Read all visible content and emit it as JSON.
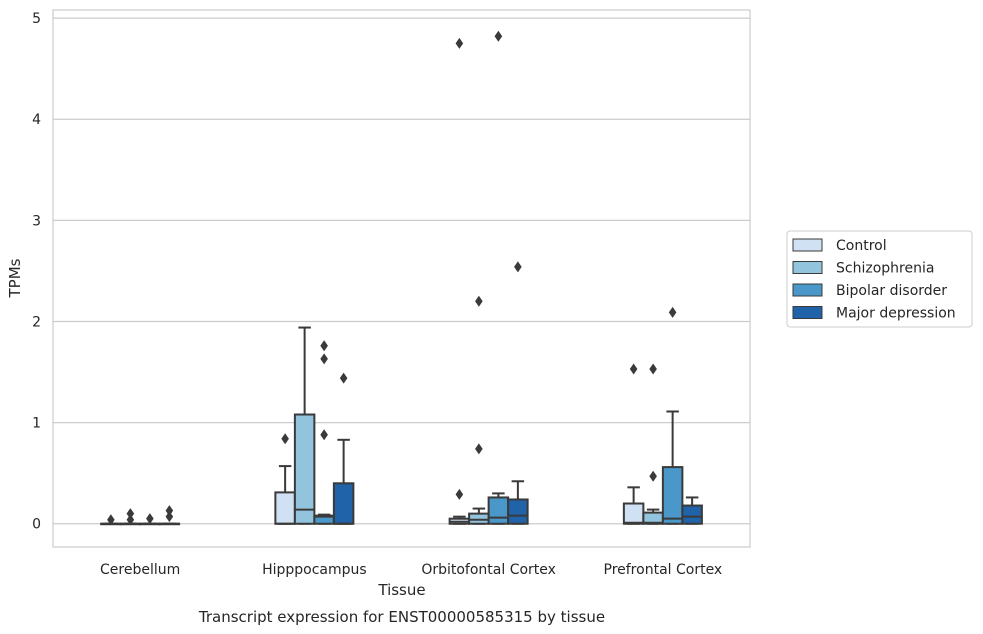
{
  "chart_data": {
    "type": "box",
    "xlabel": "Tissue",
    "ylabel": "TPMs",
    "caption": "Transcript expression for ENST00000585315 by tissue",
    "ylim": [
      -0.23,
      5.08
    ],
    "yticks": [
      0,
      1,
      2,
      3,
      4,
      5
    ],
    "grid": true,
    "legend_position": "center-right",
    "categories": [
      "Cerebellum",
      "Hipppocampus",
      "Orbitofontal Cortex",
      "Prefrontal Cortex"
    ],
    "series": [
      {
        "name": "Control",
        "color": "#cfe1f2",
        "boxes": [
          {
            "whislo": 0,
            "q1": 0,
            "med": 0,
            "q3": 0,
            "whishi": 0,
            "fliers": [
              0.04
            ]
          },
          {
            "whislo": 0,
            "q1": 0,
            "med": 0,
            "q3": 0.31,
            "whishi": 0.57,
            "fliers": [
              0.84
            ]
          },
          {
            "whislo": 0,
            "q1": 0,
            "med": 0.02,
            "q3": 0.05,
            "whishi": 0.07,
            "fliers": [
              0.29,
              4.75
            ]
          },
          {
            "whislo": 0,
            "q1": 0,
            "med": 0.01,
            "q3": 0.2,
            "whishi": 0.36,
            "fliers": [
              1.53
            ]
          }
        ]
      },
      {
        "name": "Schizophrenia",
        "color": "#93c4de",
        "boxes": [
          {
            "whislo": 0,
            "q1": 0,
            "med": 0,
            "q3": 0,
            "whishi": 0,
            "fliers": [
              0.04,
              0.1
            ]
          },
          {
            "whislo": 0,
            "q1": 0,
            "med": 0.14,
            "q3": 1.08,
            "whishi": 1.94,
            "fliers": []
          },
          {
            "whislo": 0,
            "q1": 0,
            "med": 0.04,
            "q3": 0.1,
            "whishi": 0.15,
            "fliers": [
              0.74,
              2.2
            ]
          },
          {
            "whislo": 0,
            "q1": 0,
            "med": 0.01,
            "q3": 0.11,
            "whishi": 0.14,
            "fliers": [
              0.47,
              1.53
            ]
          }
        ]
      },
      {
        "name": "Bipolar disorder",
        "color": "#4a98c9",
        "boxes": [
          {
            "whislo": 0,
            "q1": 0,
            "med": 0,
            "q3": 0,
            "whishi": 0,
            "fliers": [
              0.05
            ]
          },
          {
            "whislo": 0,
            "q1": 0,
            "med": 0.07,
            "q3": 0.08,
            "whishi": 0.09,
            "fliers": [
              0.88,
              1.63,
              1.76
            ]
          },
          {
            "whislo": 0,
            "q1": 0,
            "med": 0.06,
            "q3": 0.26,
            "whishi": 0.3,
            "fliers": [
              4.82
            ]
          },
          {
            "whislo": 0,
            "q1": 0,
            "med": 0.05,
            "q3": 0.56,
            "whishi": 1.11,
            "fliers": [
              2.09
            ]
          }
        ]
      },
      {
        "name": "Major depression",
        "color": "#2063a9",
        "boxes": [
          {
            "whislo": 0,
            "q1": 0,
            "med": 0,
            "q3": 0,
            "whishi": 0,
            "fliers": [
              0.07,
              0.13
            ]
          },
          {
            "whislo": 0,
            "q1": 0,
            "med": 0,
            "q3": 0.4,
            "whishi": 0.83,
            "fliers": [
              1.44
            ]
          },
          {
            "whislo": 0,
            "q1": 0,
            "med": 0.08,
            "q3": 0.24,
            "whishi": 0.42,
            "fliers": [
              2.54
            ]
          },
          {
            "whislo": 0,
            "q1": 0,
            "med": 0.07,
            "q3": 0.18,
            "whishi": 0.26,
            "fliers": []
          }
        ]
      }
    ]
  }
}
